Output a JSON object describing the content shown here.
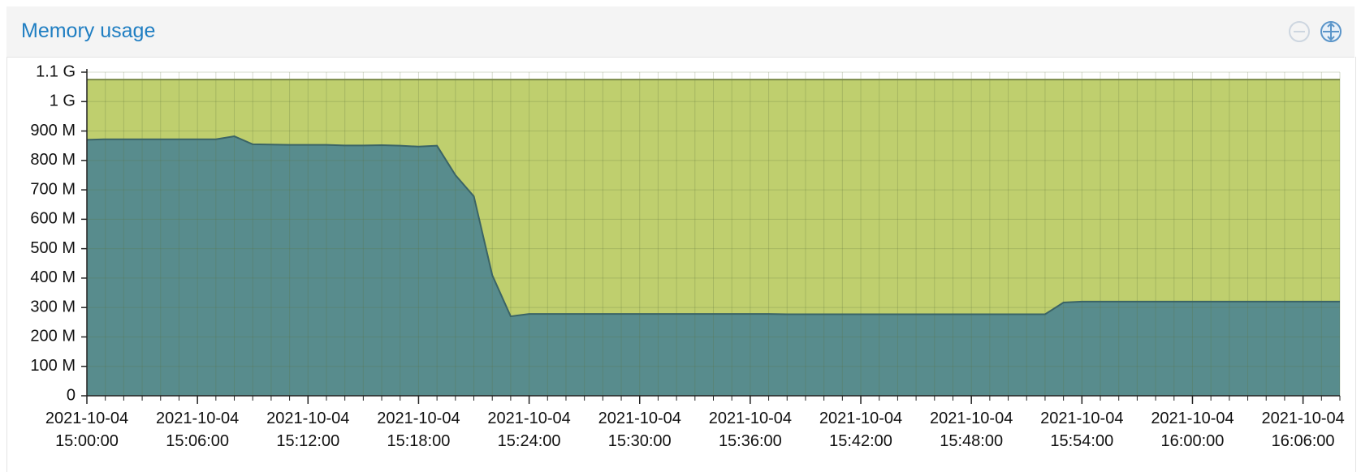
{
  "chart_data": {
    "type": "area",
    "title": "Memory usage",
    "x": [
      "2021-10-04 15:00:00",
      "2021-10-04 15:01:00",
      "2021-10-04 15:02:00",
      "2021-10-04 15:03:00",
      "2021-10-04 15:04:00",
      "2021-10-04 15:05:00",
      "2021-10-04 15:06:00",
      "2021-10-04 15:07:00",
      "2021-10-04 15:08:00",
      "2021-10-04 15:09:00",
      "2021-10-04 15:10:00",
      "2021-10-04 15:11:00",
      "2021-10-04 15:12:00",
      "2021-10-04 15:13:00",
      "2021-10-04 15:14:00",
      "2021-10-04 15:15:00",
      "2021-10-04 15:16:00",
      "2021-10-04 15:17:00",
      "2021-10-04 15:18:00",
      "2021-10-04 15:19:00",
      "2021-10-04 15:20:00",
      "2021-10-04 15:21:00",
      "2021-10-04 15:22:00",
      "2021-10-04 15:23:00",
      "2021-10-04 15:24:00",
      "2021-10-04 15:25:00",
      "2021-10-04 15:26:00",
      "2021-10-04 15:27:00",
      "2021-10-04 15:28:00",
      "2021-10-04 15:29:00",
      "2021-10-04 15:30:00",
      "2021-10-04 15:31:00",
      "2021-10-04 15:32:00",
      "2021-10-04 15:33:00",
      "2021-10-04 15:34:00",
      "2021-10-04 15:35:00",
      "2021-10-04 15:36:00",
      "2021-10-04 15:37:00",
      "2021-10-04 15:38:00",
      "2021-10-04 15:39:00",
      "2021-10-04 15:40:00",
      "2021-10-04 15:41:00",
      "2021-10-04 15:42:00",
      "2021-10-04 15:43:00",
      "2021-10-04 15:44:00",
      "2021-10-04 15:45:00",
      "2021-10-04 15:46:00",
      "2021-10-04 15:47:00",
      "2021-10-04 15:48:00",
      "2021-10-04 15:49:00",
      "2021-10-04 15:50:00",
      "2021-10-04 15:51:00",
      "2021-10-04 15:52:00",
      "2021-10-04 15:53:00",
      "2021-10-04 15:54:00",
      "2021-10-04 15:55:00",
      "2021-10-04 15:56:00",
      "2021-10-04 15:57:00",
      "2021-10-04 15:58:00",
      "2021-10-04 15:59:00",
      "2021-10-04 16:00:00",
      "2021-10-04 16:01:00",
      "2021-10-04 16:02:00",
      "2021-10-04 16:03:00",
      "2021-10-04 16:04:00",
      "2021-10-04 16:05:00",
      "2021-10-04 16:06:00",
      "2021-10-04 16:07:00",
      "2021-10-04 16:08:00"
    ],
    "xticks": [
      0,
      6,
      12,
      18,
      24,
      30,
      36,
      42,
      48,
      54,
      60,
      66
    ],
    "series": [
      {
        "color": "#bfcf6e",
        "line_color": "#7a8a48",
        "values": [
          1075,
          1075,
          1075,
          1075,
          1075,
          1075,
          1075,
          1075,
          1075,
          1075,
          1075,
          1075,
          1075,
          1075,
          1075,
          1075,
          1075,
          1075,
          1075,
          1075,
          1075,
          1075,
          1075,
          1075,
          1075,
          1075,
          1075,
          1075,
          1075,
          1075,
          1075,
          1075,
          1075,
          1075,
          1075,
          1075,
          1075,
          1075,
          1075,
          1075,
          1075,
          1075,
          1075,
          1075,
          1075,
          1075,
          1075,
          1075,
          1075,
          1075,
          1075,
          1075,
          1075,
          1075,
          1075,
          1075,
          1075,
          1075,
          1075,
          1075,
          1075,
          1075,
          1075,
          1075,
          1075,
          1075,
          1075,
          1075,
          1075
        ]
      },
      {
        "color": "#588c8d",
        "line_color": "#3b6466",
        "values": [
          870,
          872,
          872,
          872,
          872,
          872,
          872,
          872,
          882,
          855,
          854,
          853,
          853,
          853,
          851,
          851,
          852,
          850,
          847,
          850,
          750,
          678,
          410,
          270,
          278,
          278,
          278,
          278,
          278,
          278,
          278,
          278,
          278,
          278,
          278,
          278,
          278,
          278,
          277,
          277,
          277,
          277,
          277,
          277,
          277,
          277,
          277,
          277,
          277,
          277,
          277,
          277,
          277,
          317,
          320,
          320,
          320,
          320,
          320,
          320,
          320,
          320,
          320,
          320,
          320,
          320,
          320,
          320,
          320
        ]
      }
    ],
    "ylim": [
      0,
      1100
    ],
    "yticks": [
      0,
      {
        "value": 100,
        "label": "100 M"
      },
      {
        "value": 200,
        "label": "200 M"
      },
      {
        "value": 300,
        "label": "300 M"
      },
      {
        "value": 400,
        "label": "400 M"
      },
      {
        "value": 500,
        "label": "500 M"
      },
      {
        "value": 600,
        "label": "600 M"
      },
      {
        "value": 700,
        "label": "700 M"
      },
      {
        "value": 800,
        "label": "800 M"
      },
      {
        "value": 900,
        "label": "900 M"
      },
      {
        "value": 1000,
        "label": "1 G"
      },
      {
        "value": 1100,
        "label": "1.1 G"
      }
    ],
    "grid": true
  }
}
